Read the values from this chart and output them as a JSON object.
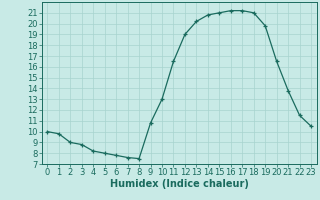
{
  "x": [
    0,
    1,
    2,
    3,
    4,
    5,
    6,
    7,
    8,
    9,
    10,
    11,
    12,
    13,
    14,
    15,
    16,
    17,
    18,
    19,
    20,
    21,
    22,
    23
  ],
  "y": [
    10.0,
    9.8,
    9.0,
    8.8,
    8.2,
    8.0,
    7.8,
    7.6,
    7.5,
    10.8,
    13.0,
    16.5,
    19.0,
    20.2,
    20.8,
    21.0,
    21.2,
    21.2,
    21.0,
    19.8,
    16.5,
    13.8,
    11.5,
    10.5
  ],
  "xlim": [
    -0.5,
    23.5
  ],
  "ylim": [
    7,
    22
  ],
  "yticks": [
    7,
    8,
    9,
    10,
    11,
    12,
    13,
    14,
    15,
    16,
    17,
    18,
    19,
    20,
    21
  ],
  "xticks": [
    0,
    1,
    2,
    3,
    4,
    5,
    6,
    7,
    8,
    9,
    10,
    11,
    12,
    13,
    14,
    15,
    16,
    17,
    18,
    19,
    20,
    21,
    22,
    23
  ],
  "xlabel": "Humidex (Indice chaleur)",
  "line_color": "#1a6b5e",
  "marker": "+",
  "bg_color": "#c8eae6",
  "grid_color": "#a8d4cf",
  "tick_color": "#1a6b5e",
  "label_color": "#1a6b5e",
  "font_size": 6,
  "xlabel_fontsize": 7
}
